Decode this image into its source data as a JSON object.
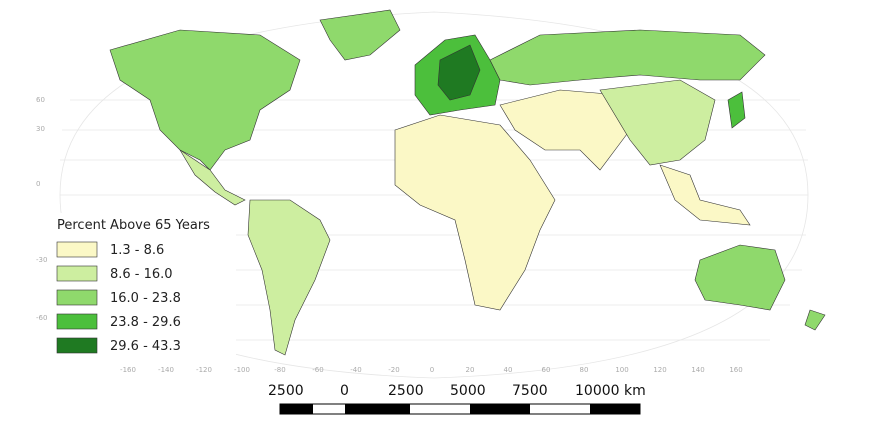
{
  "legend": {
    "title": "Percent Above 65 Years",
    "classes": [
      {
        "label": "1.3 - 8.6",
        "color": "#fbf8c6"
      },
      {
        "label": "8.6 - 16.0",
        "color": "#cdeea0"
      },
      {
        "label": "16.0 - 23.8",
        "color": "#8fd96c"
      },
      {
        "label": "23.8 - 29.6",
        "color": "#4cbf3c"
      },
      {
        "label": "29.6 - 43.3",
        "color": "#1f7a22"
      }
    ]
  },
  "scale_bar": {
    "labels": [
      "2500",
      "0",
      "2500",
      "5000",
      "7500",
      "10000 km"
    ]
  },
  "graticule": {
    "latitude_labels": [
      "60",
      "30",
      "0",
      "-30",
      "-60"
    ],
    "longitude_labels": [
      "-160",
      "-140",
      "-120",
      "-100",
      "-80",
      "-60",
      "-40",
      "-20",
      "0",
      "20",
      "40",
      "60",
      "80",
      "100",
      "120",
      "140",
      "160"
    ]
  }
}
